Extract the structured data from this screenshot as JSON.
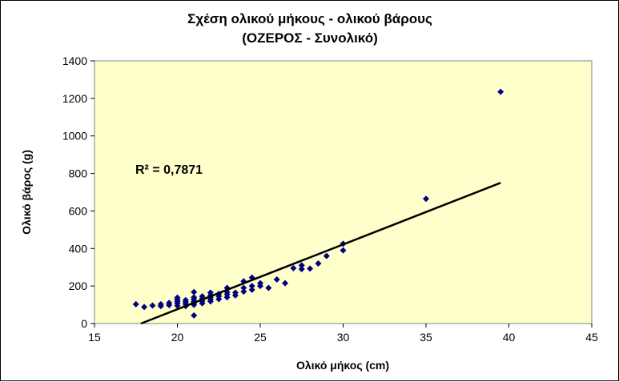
{
  "chart_data": {
    "type": "scatter",
    "title_lines": [
      "Σχέση ολικού μήκους - ολικού βάρους",
      "(ΟΖΕΡΟΣ - Συνολικό)"
    ],
    "xlabel": "Ολικό μήκος (cm)",
    "ylabel": "Ολικό βάρος (g)",
    "xlim": [
      15,
      45
    ],
    "ylim": [
      0,
      1400
    ],
    "xticks": [
      15,
      20,
      25,
      30,
      35,
      40,
      45
    ],
    "yticks": [
      0,
      200,
      400,
      600,
      800,
      1000,
      1200,
      1400
    ],
    "grid": false,
    "legend": "none",
    "plot_background": "#FFFFCC",
    "point_color": "#000080",
    "trendline_color": "#000000",
    "annotation": "R² = 0,7871",
    "trendline": {
      "points": [
        [
          17.8,
          0
        ],
        [
          39.5,
          750
        ]
      ]
    },
    "points": [
      [
        17.5,
        103
      ],
      [
        18,
        88
      ],
      [
        18.5,
        96
      ],
      [
        19,
        93
      ],
      [
        19,
        103
      ],
      [
        19.5,
        98
      ],
      [
        19.5,
        110
      ],
      [
        20,
        95
      ],
      [
        20,
        108
      ],
      [
        20,
        118
      ],
      [
        20,
        128
      ],
      [
        20,
        138
      ],
      [
        20.5,
        93
      ],
      [
        20.5,
        105
      ],
      [
        20.5,
        115
      ],
      [
        20.5,
        125
      ],
      [
        21,
        43
      ],
      [
        21,
        100
      ],
      [
        21,
        110
      ],
      [
        21,
        118
      ],
      [
        21,
        130
      ],
      [
        21,
        140
      ],
      [
        21,
        168
      ],
      [
        21.5,
        108
      ],
      [
        21.5,
        120
      ],
      [
        21.5,
        133
      ],
      [
        21.5,
        145
      ],
      [
        22,
        118
      ],
      [
        22,
        128
      ],
      [
        22,
        140
      ],
      [
        22,
        150
      ],
      [
        22,
        165
      ],
      [
        22.5,
        130
      ],
      [
        22.5,
        145
      ],
      [
        22.5,
        158
      ],
      [
        23,
        140
      ],
      [
        23,
        155
      ],
      [
        23,
        168
      ],
      [
        23,
        190
      ],
      [
        23.5,
        150
      ],
      [
        23.5,
        165
      ],
      [
        24,
        170
      ],
      [
        24,
        190
      ],
      [
        24,
        225
      ],
      [
        24.5,
        180
      ],
      [
        24.5,
        200
      ],
      [
        24.5,
        245
      ],
      [
        25,
        200
      ],
      [
        25,
        215
      ],
      [
        25.5,
        190
      ],
      [
        26,
        235
      ],
      [
        26.5,
        215
      ],
      [
        27,
        295
      ],
      [
        27.5,
        290
      ],
      [
        27.5,
        310
      ],
      [
        28,
        293
      ],
      [
        28.5,
        320
      ],
      [
        29,
        360
      ],
      [
        30,
        390
      ],
      [
        30,
        425
      ],
      [
        35,
        665
      ],
      [
        39.5,
        1235
      ]
    ]
  }
}
